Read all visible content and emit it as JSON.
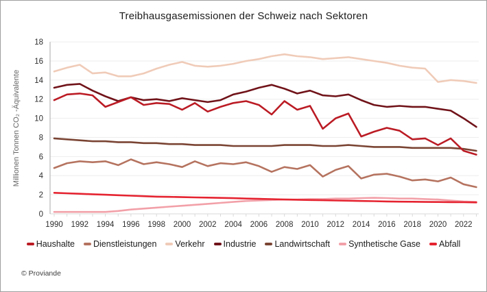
{
  "page": {
    "copyright": "© Proviande"
  },
  "chart_data": {
    "type": "line",
    "title": "Treibhausgasemissionen der Schweiz nach Sektoren",
    "xlabel": "",
    "ylabel": "Millionen Tonnen CO₂ -Äquivalente",
    "ylim": [
      0,
      18
    ],
    "ytick_step": 2,
    "grid": "horizontal",
    "legend_position": "bottom",
    "x": [
      1990,
      1991,
      1992,
      1993,
      1994,
      1995,
      1996,
      1997,
      1998,
      1999,
      2000,
      2001,
      2002,
      2003,
      2004,
      2005,
      2006,
      2007,
      2008,
      2009,
      2010,
      2011,
      2012,
      2013,
      2014,
      2015,
      2016,
      2017,
      2018,
      2019,
      2020,
      2021,
      2022,
      2023
    ],
    "xtick_labels": [
      "1990",
      "1992",
      "1994",
      "1996",
      "1998",
      "2000",
      "2002",
      "2004",
      "2006",
      "2008",
      "2010",
      "2012",
      "2014",
      "2016",
      "2018",
      "2020",
      "2022"
    ],
    "series": [
      {
        "name": "Haushalte",
        "color": "#bb1b24",
        "values": [
          11.9,
          12.5,
          12.6,
          12.4,
          11.2,
          11.7,
          12.2,
          11.4,
          11.6,
          11.5,
          10.9,
          11.6,
          10.7,
          11.2,
          11.6,
          11.8,
          11.4,
          10.4,
          11.8,
          10.9,
          11.3,
          8.9,
          10.0,
          10.5,
          8.1,
          8.6,
          9.0,
          8.7,
          7.8,
          7.9,
          7.2,
          7.9,
          6.6,
          6.2
        ]
      },
      {
        "name": "Dienstleistungen",
        "color": "#b5735f",
        "values": [
          4.8,
          5.3,
          5.5,
          5.4,
          5.5,
          5.1,
          5.7,
          5.2,
          5.4,
          5.2,
          4.9,
          5.5,
          5.0,
          5.3,
          5.2,
          5.4,
          5.0,
          4.4,
          4.9,
          4.7,
          5.1,
          3.9,
          4.6,
          5.0,
          3.7,
          4.1,
          4.2,
          3.9,
          3.5,
          3.6,
          3.4,
          3.8,
          3.1,
          2.8
        ]
      },
      {
        "name": "Verkehr",
        "color": "#f0cbb8",
        "values": [
          14.9,
          15.3,
          15.6,
          14.7,
          14.8,
          14.4,
          14.4,
          14.7,
          15.2,
          15.6,
          15.9,
          15.5,
          15.4,
          15.5,
          15.7,
          16.0,
          16.2,
          16.5,
          16.7,
          16.5,
          16.4,
          16.2,
          16.3,
          16.4,
          16.2,
          16.0,
          15.8,
          15.5,
          15.3,
          15.2,
          13.8,
          14.0,
          13.9,
          13.7
        ]
      },
      {
        "name": "Industrie",
        "color": "#701319",
        "values": [
          13.2,
          13.5,
          13.6,
          12.9,
          12.3,
          11.8,
          12.2,
          11.9,
          12.0,
          11.8,
          12.1,
          11.9,
          11.7,
          11.9,
          12.5,
          12.8,
          13.2,
          13.5,
          13.1,
          12.6,
          12.9,
          12.4,
          12.3,
          12.5,
          11.9,
          11.4,
          11.2,
          11.3,
          11.2,
          11.2,
          11.0,
          10.8,
          10.0,
          9.1
        ]
      },
      {
        "name": "Landwirtschaft",
        "color": "#7a4433",
        "values": [
          7.9,
          7.8,
          7.7,
          7.6,
          7.6,
          7.5,
          7.5,
          7.4,
          7.4,
          7.3,
          7.3,
          7.2,
          7.2,
          7.2,
          7.1,
          7.1,
          7.1,
          7.1,
          7.2,
          7.2,
          7.2,
          7.1,
          7.1,
          7.2,
          7.1,
          7.0,
          7.0,
          7.0,
          6.9,
          6.9,
          6.9,
          6.9,
          6.8,
          6.6
        ]
      },
      {
        "name": "Synthetische Gase",
        "color": "#f2a0a8",
        "values": [
          0.2,
          0.2,
          0.2,
          0.2,
          0.2,
          0.3,
          0.45,
          0.55,
          0.65,
          0.75,
          0.85,
          0.95,
          1.05,
          1.15,
          1.25,
          1.35,
          1.4,
          1.45,
          1.5,
          1.5,
          1.55,
          1.55,
          1.6,
          1.6,
          1.65,
          1.68,
          1.65,
          1.6,
          1.6,
          1.55,
          1.5,
          1.4,
          1.3,
          1.25
        ]
      },
      {
        "name": "Abfall",
        "color": "#e52330",
        "values": [
          2.2,
          2.15,
          2.1,
          2.05,
          2.0,
          1.95,
          1.9,
          1.85,
          1.8,
          1.78,
          1.75,
          1.72,
          1.7,
          1.67,
          1.64,
          1.6,
          1.57,
          1.54,
          1.5,
          1.48,
          1.45,
          1.43,
          1.4,
          1.38,
          1.35,
          1.33,
          1.3,
          1.28,
          1.27,
          1.25,
          1.24,
          1.23,
          1.22,
          1.2
        ]
      }
    ]
  }
}
